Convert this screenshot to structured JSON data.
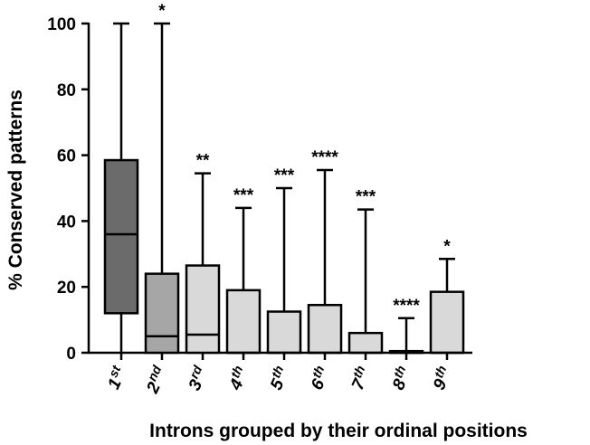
{
  "chart_data": {
    "type": "boxplot",
    "title": "",
    "xlabel": "Introns grouped by their ordinal positions",
    "ylabel": "% Conserved patterns",
    "ylim": [
      0,
      100
    ],
    "yticks": [
      "0",
      "20",
      "40",
      "60",
      "80",
      "100"
    ],
    "grid": false,
    "legend": "none",
    "categories": [
      {
        "num": "1",
        "suffix": "st"
      },
      {
        "num": "2",
        "suffix": "nd"
      },
      {
        "num": "3",
        "suffix": "rd"
      },
      {
        "num": "4",
        "suffix": "th"
      },
      {
        "num": "5",
        "suffix": "th"
      },
      {
        "num": "6",
        "suffix": "th"
      },
      {
        "num": "7",
        "suffix": "th"
      },
      {
        "num": "8",
        "suffix": "th"
      },
      {
        "num": "9",
        "suffix": "th"
      }
    ],
    "boxes": [
      {
        "min": 0,
        "q1": 12,
        "median": 36,
        "q3": 58.5,
        "max": 100,
        "color": "#6b6b6b",
        "significance": ""
      },
      {
        "min": 0,
        "q1": 0,
        "median": 5,
        "q3": 24,
        "max": 100,
        "color": "#a6a6a6",
        "significance": "*"
      },
      {
        "min": 0,
        "q1": 0,
        "median": 5.5,
        "q3": 26.5,
        "max": 54.5,
        "color": "#d9d9d9",
        "significance": "**"
      },
      {
        "min": 0,
        "q1": 0,
        "median": 0,
        "q3": 19,
        "max": 44,
        "color": "#d9d9d9",
        "significance": "***"
      },
      {
        "min": 0,
        "q1": 0,
        "median": 0,
        "q3": 12.5,
        "max": 50,
        "color": "#d9d9d9",
        "significance": "***"
      },
      {
        "min": 0,
        "q1": 0,
        "median": 0,
        "q3": 14.5,
        "max": 55.5,
        "color": "#d9d9d9",
        "significance": "****"
      },
      {
        "min": 0,
        "q1": 0,
        "median": 0,
        "q3": 6,
        "max": 43.5,
        "color": "#d9d9d9",
        "significance": "***"
      },
      {
        "min": 0,
        "q1": 0,
        "median": 0,
        "q3": 0.5,
        "max": 10.5,
        "color": "#d9d9d9",
        "significance": "****"
      },
      {
        "min": 0,
        "q1": 0,
        "median": 0,
        "q3": 18.5,
        "max": 28.5,
        "color": "#d9d9d9",
        "significance": "*"
      }
    ]
  }
}
